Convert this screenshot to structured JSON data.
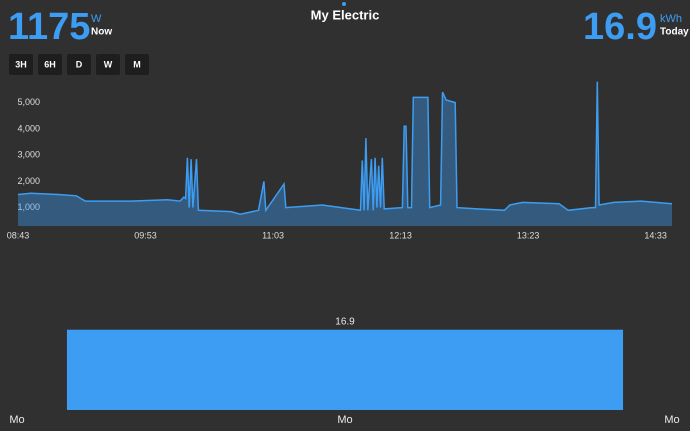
{
  "header": {
    "power_value": "1175",
    "power_unit": "W",
    "power_label": "Now",
    "title": "My Electric",
    "energy_value": "16.9",
    "energy_unit": "kWh",
    "energy_label": "Today"
  },
  "buttons": [
    "3H",
    "6H",
    "D",
    "W",
    "M"
  ],
  "chart_data": [
    {
      "type": "line",
      "color": "#3d9df3",
      "x": [
        "08:43",
        "08:50",
        "09:05",
        "09:15",
        "09:20",
        "09:45",
        "10:05",
        "10:12",
        "10:14",
        "10:15",
        "10:16",
        "10:17",
        "10:18",
        "10:19",
        "10:21",
        "10:22",
        "10:40",
        "10:45",
        "10:55",
        "10:58",
        "10:59",
        "11:09",
        "11:10",
        "11:30",
        "11:51",
        "11:52",
        "11:53",
        "11:54",
        "11:55",
        "11:57",
        "11:58",
        "11:59",
        "12:00",
        "12:01",
        "12:02",
        "12:03",
        "12:04",
        "12:14",
        "12:15",
        "12:16",
        "12:17",
        "12:19",
        "12:20",
        "12:28",
        "12:29",
        "12:35",
        "12:36",
        "12:38",
        "12:43",
        "12:44",
        "12:55",
        "13:10",
        "13:13",
        "13:20",
        "13:40",
        "13:45",
        "13:58",
        "14:00",
        "14:01",
        "14:02",
        "14:10",
        "14:25",
        "14:42"
      ],
      "values": [
        1500,
        1550,
        1500,
        1450,
        1250,
        1250,
        1300,
        1250,
        1400,
        1350,
        2900,
        1000,
        2850,
        1000,
        2850,
        900,
        850,
        750,
        900,
        2000,
        900,
        1900,
        1000,
        1100,
        900,
        2800,
        900,
        3650,
        900,
        2850,
        900,
        2900,
        1000,
        2600,
        1000,
        2900,
        950,
        1000,
        4100,
        4100,
        1000,
        1000,
        5200,
        5200,
        1000,
        1100,
        5400,
        5100,
        5000,
        1000,
        950,
        900,
        1100,
        1200,
        1150,
        900,
        1000,
        1000,
        5800,
        1100,
        1200,
        1250,
        1150
      ],
      "xlim": [
        "08:43",
        "14:42"
      ],
      "xticks": [
        "08:43",
        "09:53",
        "11:03",
        "12:13",
        "13:23",
        "14:33"
      ],
      "ylim": [
        300,
        6100
      ],
      "yticks": [
        {
          "value": 1000,
          "label": "1,000"
        },
        {
          "value": 2000,
          "label": "2,000"
        },
        {
          "value": 3000,
          "label": "3,000"
        },
        {
          "value": 4000,
          "label": "4,000"
        },
        {
          "value": 5000,
          "label": "5,000"
        }
      ]
    },
    {
      "type": "bar",
      "color": "#3d9df3",
      "categories": [
        "Mo"
      ],
      "values": [
        16.9
      ],
      "ylim": [
        0,
        20
      ],
      "x_edge_labels": [
        "Mo",
        "Mo"
      ]
    }
  ]
}
